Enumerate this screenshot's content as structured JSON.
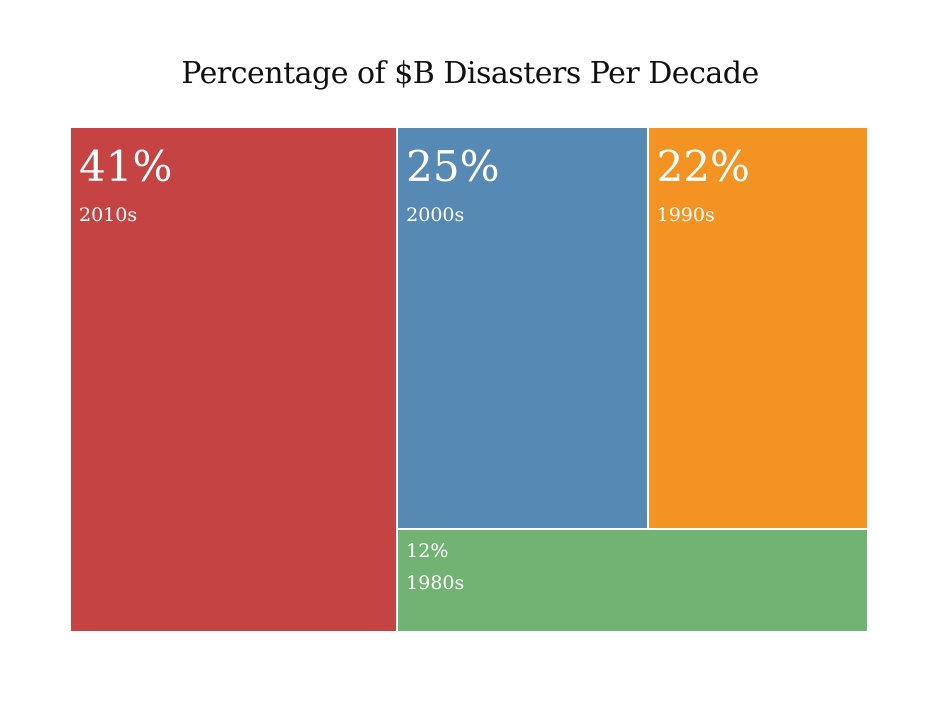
{
  "chart_data": {
    "type": "treemap",
    "title": "Percentage of $B Disasters Per Decade",
    "unit": "%",
    "items": [
      {
        "label": "2010s",
        "value": 41,
        "value_text": "41%",
        "color": "#c64343"
      },
      {
        "label": "2000s",
        "value": 25,
        "value_text": "25%",
        "color": "#5689b4"
      },
      {
        "label": "1990s",
        "value": 22,
        "value_text": "22%",
        "color": "#f39323"
      },
      {
        "label": "1980s",
        "value": 12,
        "value_text": "12%",
        "color": "#72b273"
      }
    ]
  }
}
